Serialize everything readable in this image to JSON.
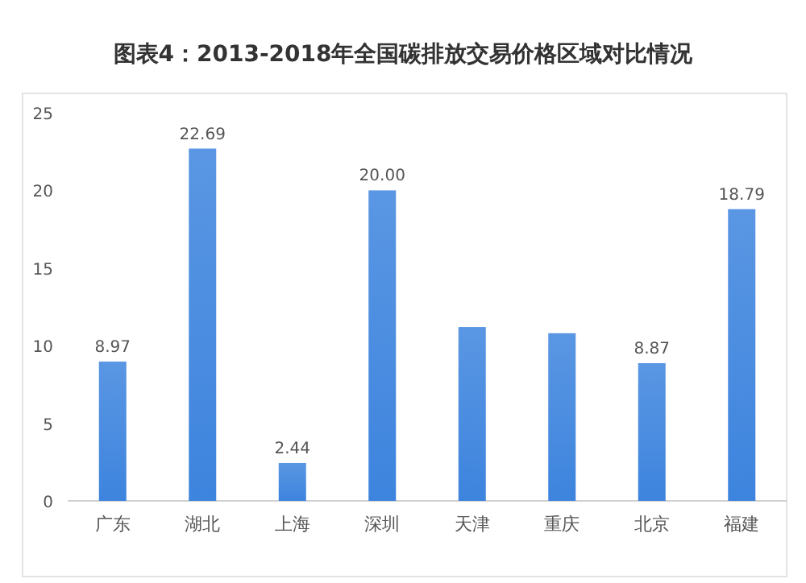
{
  "chart_data": {
    "type": "bar",
    "title": "图表4：2013-2018年全国碳排放交易价格区域对比情况",
    "categories": [
      "广东",
      "湖北",
      "上海",
      "深圳",
      "天津",
      "重庆",
      "北京",
      "福建"
    ],
    "values": [
      8.97,
      22.69,
      2.44,
      20.0,
      11.2,
      10.8,
      8.87,
      18.79
    ],
    "value_labels": [
      "8.97",
      "22.69",
      "2.44",
      "20.00",
      null,
      null,
      "8.87",
      "18.79"
    ],
    "color": "#3d84de",
    "ylim": [
      0,
      25
    ],
    "yticks": [
      0,
      5,
      10,
      15,
      20,
      25
    ],
    "grid": false
  }
}
